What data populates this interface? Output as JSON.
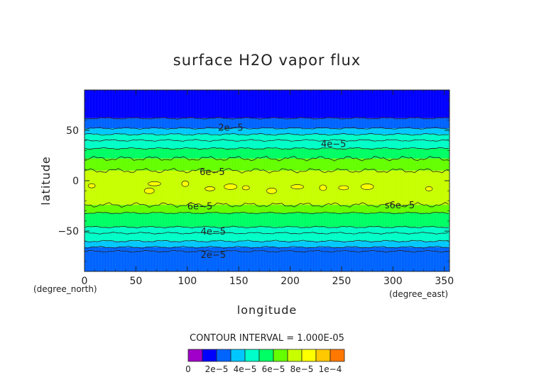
{
  "chart_data": {
    "type": "heatmap",
    "title": "surface H2O vapor flux",
    "xlabel": "longitude",
    "ylabel": "latitude",
    "x_unit": "(degree_east)",
    "y_unit": "(degree_north)",
    "xlim": [
      0,
      355
    ],
    "ylim": [
      -90,
      90
    ],
    "x_ticks": [
      "0",
      "50",
      "100",
      "150",
      "200",
      "250",
      "300",
      "350"
    ],
    "y_ticks": [
      "50",
      "0",
      "−50"
    ],
    "contour_interval_text": "CONTOUR INTERVAL = 1.000E-05",
    "contour_labels": [
      "2e−5",
      "4e−5",
      "6e−5",
      "6e−5",
      "s6e−5",
      "4e−5",
      "2e−5"
    ],
    "colorbar": {
      "min": 0,
      "max": 0.0001,
      "step": 1e-05,
      "tick_labels": [
        "0",
        "2e−5",
        "4e−5",
        "6e−5",
        "8e−5",
        "1e−4"
      ],
      "colors": [
        "#a000c8",
        "#0000ff",
        "#0064ff",
        "#00c8ff",
        "#00ffc8",
        "#00ff64",
        "#64ff00",
        "#c8ff00",
        "#ffff00",
        "#ffc800",
        "#ff7800",
        "#ff0000",
        "#ff9696"
      ]
    },
    "zonal_bands": [
      {
        "lat_min": 62,
        "lat_max": 90,
        "value": 5e-06
      },
      {
        "lat_min": 52,
        "lat_max": 62,
        "value": 1.5e-05
      },
      {
        "lat_min": 46,
        "lat_max": 52,
        "value": 2.5e-05
      },
      {
        "lat_min": 40,
        "lat_max": 46,
        "value": 3.5e-05
      },
      {
        "lat_min": 32,
        "lat_max": 40,
        "value": 3.5e-05
      },
      {
        "lat_min": 22,
        "lat_max": 32,
        "value": 4.5e-05
      },
      {
        "lat_min": 10,
        "lat_max": 22,
        "value": 5.5e-05
      },
      {
        "lat_min": -24,
        "lat_max": 10,
        "value": 6.5e-05
      },
      {
        "lat_min": -32,
        "lat_max": -24,
        "value": 5.5e-05
      },
      {
        "lat_min": -46,
        "lat_max": -32,
        "value": 4.5e-05
      },
      {
        "lat_min": -52,
        "lat_max": -46,
        "value": 3.5e-05
      },
      {
        "lat_min": -60,
        "lat_max": -52,
        "value": 3.5e-05
      },
      {
        "lat_min": -66,
        "lat_max": -60,
        "value": 2.5e-05
      },
      {
        "lat_min": -70,
        "lat_max": -66,
        "value": 1.5e-05
      },
      {
        "lat_min": -90,
        "lat_max": -70,
        "value": 1.5e-05
      }
    ],
    "contour_lines_lat": [
      62,
      52,
      46,
      40,
      32,
      22,
      10,
      -24,
      -32,
      -46,
      -52,
      -60,
      -66,
      -70
    ],
    "max_patches": [
      {
        "lon": 7,
        "lat": -5,
        "value": 7.5e-05
      },
      {
        "lon": 63,
        "lat": -10,
        "value": 7.5e-05
      },
      {
        "lon": 68,
        "lat": -3,
        "value": 7.5e-05
      },
      {
        "lon": 98,
        "lat": -3,
        "value": 7.5e-05
      },
      {
        "lon": 122,
        "lat": -8,
        "value": 7.5e-05
      },
      {
        "lon": 142,
        "lat": -6,
        "value": 7.5e-05
      },
      {
        "lon": 157,
        "lat": -7,
        "value": 7.5e-05
      },
      {
        "lon": 182,
        "lat": -10,
        "value": 7.5e-05
      },
      {
        "lon": 207,
        "lat": -6,
        "value": 7.5e-05
      },
      {
        "lon": 232,
        "lat": -7,
        "value": 7.5e-05
      },
      {
        "lon": 252,
        "lat": -7,
        "value": 7.5e-05
      },
      {
        "lon": 275,
        "lat": -6,
        "value": 7.5e-05
      },
      {
        "lon": 335,
        "lat": -8,
        "value": 7.5e-05
      }
    ]
  }
}
